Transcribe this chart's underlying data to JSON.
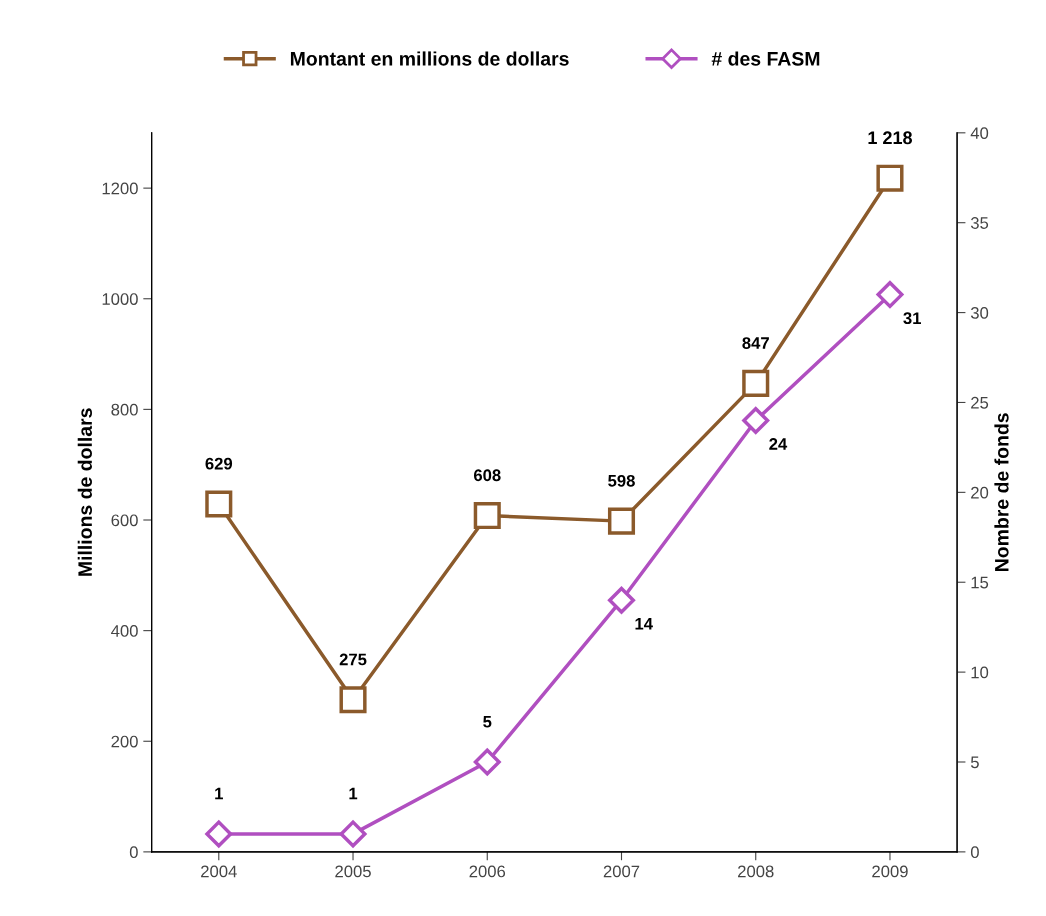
{
  "chart_data": {
    "type": "line",
    "categories": [
      "2004",
      "2005",
      "2006",
      "2007",
      "2008",
      "2009"
    ],
    "ylabel": "Millions de dollars",
    "y2label": "Nombre de fonds",
    "ylim": [
      0,
      1300
    ],
    "yticks": [
      0,
      200,
      400,
      600,
      800,
      1000,
      1200
    ],
    "y2lim": [
      0,
      40
    ],
    "y2ticks": [
      0,
      5,
      10,
      15,
      20,
      25,
      30,
      35,
      40
    ],
    "grid": false,
    "legend": "top",
    "series": [
      {
        "name": "Montant en millions de dollars",
        "color": "#8b5a2b",
        "marker": "square",
        "values": [
          629,
          275,
          608,
          598,
          847,
          1218
        ],
        "value_labels": [
          "629",
          "275",
          "608",
          "598",
          "847",
          "1 218"
        ]
      },
      {
        "name": "# des FASM",
        "color": "#b04fc0",
        "marker": "diamond",
        "axis": "y2",
        "values": [
          1,
          1,
          5,
          14,
          24,
          31
        ],
        "value_labels": [
          "1",
          "1",
          "5",
          "14",
          "24",
          "31"
        ]
      }
    ]
  }
}
